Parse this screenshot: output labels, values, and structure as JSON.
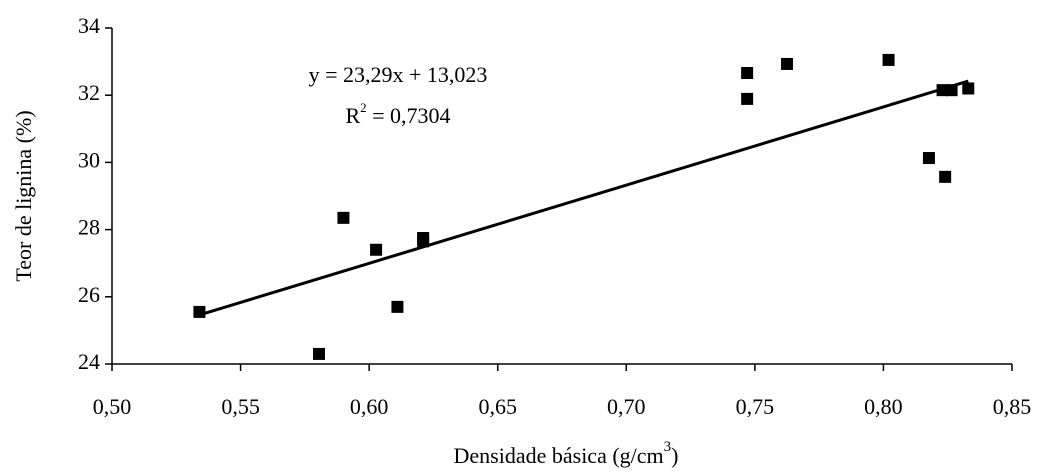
{
  "chart_data": {
    "type": "scatter",
    "x_label": {
      "text": "Densidade básica (g/cm",
      "sup": "3",
      "end": ")"
    },
    "y_label": "Teor de lignina (%)",
    "annotations": {
      "equation": "y = 23,29x + 13,023",
      "r2_base": "R",
      "r2_sup": "2",
      "r2_rest": " = 0,7304"
    },
    "x": [
      0.534,
      0.5805,
      0.59,
      0.6027,
      0.611,
      0.621,
      0.621,
      0.747,
      0.747,
      0.7625,
      0.802,
      0.8177,
      0.824,
      0.823,
      0.8265,
      0.833
    ],
    "values": [
      25.55,
      24.3,
      28.35,
      27.4,
      25.7,
      27.75,
      27.65,
      32.66,
      31.89,
      32.93,
      33.05,
      30.13,
      29.57,
      32.15,
      32.15,
      32.2
    ],
    "color": "#000000",
    "trendline": {
      "x": [
        0.534,
        0.833
      ],
      "y": [
        25.46,
        32.42
      ]
    },
    "xlim": [
      0.5,
      0.85
    ],
    "xticks": [
      {
        "value": 0.5,
        "label": "0,50"
      },
      {
        "value": 0.55,
        "label": "0,55"
      },
      {
        "value": 0.6,
        "label": "0,60"
      },
      {
        "value": 0.65,
        "label": "0,65"
      },
      {
        "value": 0.7,
        "label": "0,70"
      },
      {
        "value": 0.75,
        "label": "0,75"
      },
      {
        "value": 0.8,
        "label": "0,80"
      },
      {
        "value": 0.85,
        "label": "0,85"
      }
    ],
    "ylim": [
      24,
      34
    ],
    "yticks": [
      24,
      26,
      28,
      30,
      32,
      34
    ],
    "grid": false
  }
}
